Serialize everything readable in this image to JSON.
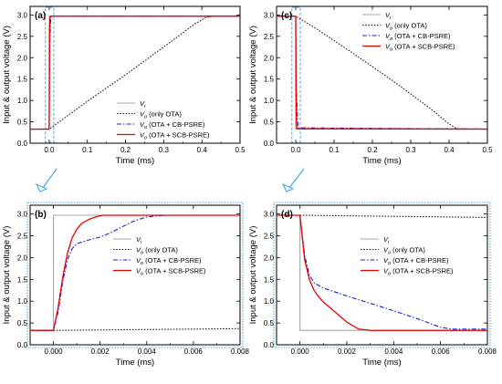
{
  "shared": {
    "ylabel": "Input & output voltage (V)",
    "xlabel": "Time (ms)",
    "colors": {
      "vi": "#a8a8a8",
      "vo_only": "#222222",
      "vo_cb": "#1f1fd6",
      "vo_scb": "#e60000",
      "zoom_box": "#48a8e0"
    },
    "legend_items": [
      {
        "key": "vi",
        "sym": "V",
        "sub": "i",
        "rest": "",
        "style": "solid"
      },
      {
        "key": "vo_only",
        "sym": "V",
        "sub": "o",
        "rest": " (only OTA)",
        "style": "dotted"
      },
      {
        "key": "vo_cb",
        "sym": "V",
        "sub": "o",
        "rest": " (OTA + CB-PSRE)",
        "style": "dashdot"
      },
      {
        "key": "vo_scb",
        "sym": "V",
        "sub": "o",
        "rest": " (OTA + SCB-PSRE)",
        "style": "solid"
      }
    ]
  },
  "chart_data": [
    {
      "type": "line",
      "panel_label": "(a)",
      "xlabel": "Time (ms)",
      "ylabel": "Input & output voltage (V)",
      "xlim": [
        -0.05,
        0.5
      ],
      "ylim": [
        0.0,
        3.2
      ],
      "xticks": [
        0.0,
        0.1,
        0.2,
        0.3,
        0.4,
        0.5
      ],
      "xtick_labels": [
        "0.0",
        "0.1",
        "0.2",
        "0.3",
        "0.4",
        "0.5"
      ],
      "yticks": [
        0.0,
        0.5,
        1.0,
        1.5,
        2.0,
        2.5,
        3.0
      ],
      "ytick_labels": [
        "0.0",
        "0.5",
        "1.0",
        "1.5",
        "2.0",
        "2.5",
        "3.0"
      ],
      "legend_position": "lower-right",
      "zoom_box": {
        "x": [
          -0.01,
          0.012
        ],
        "y": [
          0.0,
          3.2
        ]
      },
      "series": [
        {
          "key": "vi",
          "x": [
            -0.05,
            0.0,
            0.0,
            0.5
          ],
          "y": [
            0.33,
            0.33,
            2.97,
            2.97
          ]
        },
        {
          "key": "vo_only",
          "x": [
            -0.05,
            0.0,
            0.1,
            0.2,
            0.3,
            0.38,
            0.41,
            0.43,
            0.5
          ],
          "y": [
            0.33,
            0.33,
            0.98,
            1.6,
            2.25,
            2.78,
            2.94,
            2.97,
            2.97
          ]
        },
        {
          "key": "vo_cb",
          "x": [
            -0.05,
            0.0,
            0.001,
            0.002,
            0.004,
            0.006,
            0.5
          ],
          "y": [
            0.33,
            0.33,
            2.3,
            2.45,
            2.94,
            2.97,
            2.97
          ]
        },
        {
          "key": "vo_scb",
          "x": [
            -0.05,
            0.0,
            0.001,
            0.002,
            0.003,
            0.5
          ],
          "y": [
            0.33,
            0.33,
            2.55,
            2.94,
            2.97,
            2.97
          ]
        }
      ]
    },
    {
      "type": "line",
      "panel_label": "(c)",
      "xlabel": "Time (ms)",
      "ylabel": "Input & output voltage (V)",
      "xlim": [
        -0.05,
        0.5
      ],
      "ylim": [
        0.0,
        3.2
      ],
      "xticks": [
        0.0,
        0.1,
        0.2,
        0.3,
        0.4,
        0.5
      ],
      "xtick_labels": [
        "0.0",
        "0.1",
        "0.2",
        "0.3",
        "0.4",
        "0.5"
      ],
      "yticks": [
        0.0,
        0.5,
        1.0,
        1.5,
        2.0,
        2.5,
        3.0
      ],
      "ytick_labels": [
        "0.0",
        "0.5",
        "1.0",
        "1.5",
        "2.0",
        "2.5",
        "3.0"
      ],
      "legend_position": "top-right",
      "zoom_box": {
        "x": [
          -0.01,
          0.012
        ],
        "y": [
          0.0,
          3.2
        ]
      },
      "series": [
        {
          "key": "vi",
          "x": [
            -0.05,
            0.0,
            0.0,
            0.5
          ],
          "y": [
            2.97,
            2.97,
            0.33,
            0.33
          ]
        },
        {
          "key": "vo_only",
          "x": [
            -0.05,
            0.0,
            0.05,
            0.15,
            0.25,
            0.35,
            0.4,
            0.42,
            0.5
          ],
          "y": [
            2.97,
            2.97,
            2.7,
            2.1,
            1.48,
            0.82,
            0.45,
            0.34,
            0.33
          ]
        },
        {
          "key": "vo_cb",
          "x": [
            -0.05,
            0.0,
            0.001,
            0.004,
            0.006,
            0.5
          ],
          "y": [
            2.97,
            2.97,
            1.35,
            0.75,
            0.36,
            0.33
          ]
        },
        {
          "key": "vo_scb",
          "x": [
            -0.05,
            0.0,
            0.001,
            0.002,
            0.003,
            0.5
          ],
          "y": [
            2.97,
            2.97,
            1.0,
            0.45,
            0.34,
            0.33
          ]
        }
      ]
    },
    {
      "type": "line",
      "panel_label": "(b)",
      "xlabel": "Time (ms)",
      "ylabel": "Input & output voltage (V)",
      "xlim": [
        -0.001,
        0.008
      ],
      "ylim": [
        0.0,
        3.2
      ],
      "xticks": [
        0.0,
        0.002,
        0.004,
        0.006,
        0.008
      ],
      "xtick_labels": [
        "0.000",
        "0.002",
        "0.004",
        "0.006",
        "0.008"
      ],
      "yticks": [
        0.0,
        0.5,
        1.0,
        1.5,
        2.0,
        2.5,
        3.0
      ],
      "ytick_labels": [
        "0.0",
        "0.5",
        "1.0",
        "1.5",
        "2.0",
        "2.5",
        "3.0"
      ],
      "legend_position": "center-right",
      "series": [
        {
          "key": "vi",
          "x": [
            -0.001,
            0.0,
            0.0,
            0.008
          ],
          "y": [
            0.33,
            0.33,
            2.97,
            2.97
          ]
        },
        {
          "key": "vo_only",
          "x": [
            -0.001,
            0.0,
            0.008
          ],
          "y": [
            0.33,
            0.33,
            0.37
          ]
        },
        {
          "key": "vo_cb",
          "x": [
            -0.001,
            0.0,
            0.0002,
            0.0004,
            0.0006,
            0.0008,
            0.001,
            0.0015,
            0.002,
            0.0025,
            0.003,
            0.0035,
            0.004,
            0.0045,
            0.005,
            0.006,
            0.008
          ],
          "y": [
            0.33,
            0.33,
            0.75,
            1.45,
            1.95,
            2.2,
            2.32,
            2.4,
            2.47,
            2.58,
            2.72,
            2.85,
            2.93,
            2.96,
            2.97,
            2.97,
            2.97
          ]
        },
        {
          "key": "vo_scb",
          "x": [
            -0.001,
            0.0,
            0.0002,
            0.0004,
            0.0006,
            0.0008,
            0.001,
            0.0012,
            0.0015,
            0.0018,
            0.002,
            0.0022,
            0.0025,
            0.003,
            0.008
          ],
          "y": [
            0.33,
            0.33,
            0.85,
            1.55,
            2.1,
            2.45,
            2.65,
            2.78,
            2.87,
            2.93,
            2.96,
            2.97,
            2.97,
            2.97,
            2.97
          ]
        }
      ]
    },
    {
      "type": "line",
      "panel_label": "(d)",
      "xlabel": "Time (ms)",
      "ylabel": "Input & output voltage (V)",
      "xlim": [
        -0.001,
        0.008
      ],
      "ylim": [
        0.0,
        3.2
      ],
      "xticks": [
        0.0,
        0.002,
        0.004,
        0.006,
        0.008
      ],
      "xtick_labels": [
        "0.000",
        "0.002",
        "0.004",
        "0.006",
        "0.008"
      ],
      "yticks": [
        0.0,
        0.5,
        1.0,
        1.5,
        2.0,
        2.5,
        3.0
      ],
      "ytick_labels": [
        "0.0",
        "0.5",
        "1.0",
        "1.5",
        "2.0",
        "2.5",
        "3.0"
      ],
      "legend_position": "center-right",
      "series": [
        {
          "key": "vi",
          "x": [
            -0.001,
            0.0,
            0.0,
            0.008
          ],
          "y": [
            2.97,
            2.97,
            0.33,
            0.33
          ]
        },
        {
          "key": "vo_only",
          "x": [
            -0.001,
            0.0,
            0.008
          ],
          "y": [
            2.97,
            2.97,
            2.92
          ]
        },
        {
          "key": "vo_cb",
          "x": [
            -0.001,
            0.0,
            0.0001,
            0.0002,
            0.0004,
            0.0006,
            0.0008,
            0.001,
            0.002,
            0.003,
            0.004,
            0.005,
            0.006,
            0.0065,
            0.008
          ],
          "y": [
            2.97,
            2.97,
            2.5,
            2.05,
            1.6,
            1.42,
            1.36,
            1.3,
            1.12,
            0.95,
            0.78,
            0.6,
            0.4,
            0.36,
            0.36
          ]
        },
        {
          "key": "vo_scb",
          "x": [
            -0.001,
            0.0,
            0.0001,
            0.0002,
            0.0004,
            0.0006,
            0.0008,
            0.001,
            0.0015,
            0.002,
            0.0025,
            0.003,
            0.008
          ],
          "y": [
            2.97,
            2.97,
            2.45,
            1.95,
            1.5,
            1.25,
            1.1,
            0.98,
            0.75,
            0.52,
            0.36,
            0.33,
            0.33
          ]
        }
      ]
    }
  ]
}
